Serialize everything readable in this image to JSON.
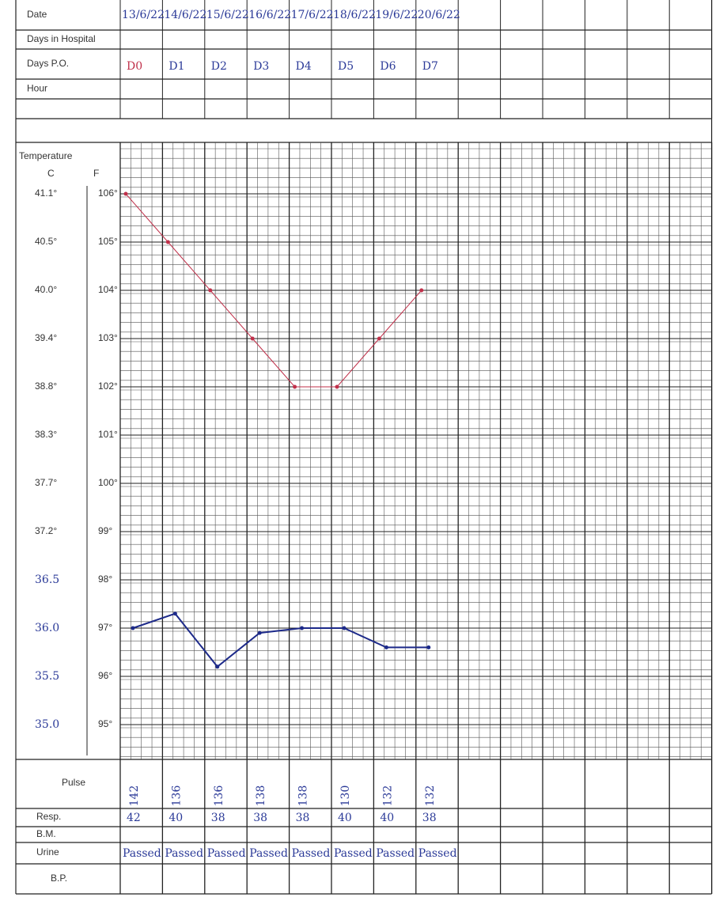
{
  "header_rows": [
    "Date",
    "Days in Hospital",
    "Days P.O.",
    "Hour"
  ],
  "dates": [
    "13/6/22",
    "14/6/22",
    "15/6/22",
    "16/6/22",
    "17/6/22",
    "18/6/22",
    "19/6/22",
    "20/6/22"
  ],
  "days_po": [
    "D0",
    "D1",
    "D2",
    "D3",
    "D4",
    "D5",
    "D6",
    "D7"
  ],
  "temperature": {
    "label": "Temperature",
    "c_label": "C",
    "f_label": "F",
    "c_scale": [
      "41.1°",
      "40.5°",
      "40.0°",
      "39.4°",
      "38.8°",
      "38.3°",
      "37.7°",
      "37.2°",
      "36.5",
      "36.0",
      "35.5",
      "35.0"
    ],
    "f_scale": [
      {
        "value": 106,
        "label": "106°"
      },
      {
        "value": 105,
        "label": "105°"
      },
      {
        "value": 104,
        "label": "104°"
      },
      {
        "value": 103,
        "label": "103°"
      },
      {
        "value": 102,
        "label": "102°"
      },
      {
        "value": 101,
        "label": "101°"
      },
      {
        "value": 100,
        "label": "100°"
      },
      {
        "value": 99,
        "label": "99°"
      },
      {
        "value": 98,
        "label": "98°"
      },
      {
        "value": 97,
        "label": "97°"
      },
      {
        "value": 96,
        "label": "96°"
      },
      {
        "value": 95,
        "label": "95°"
      }
    ],
    "readings_f": [
      106,
      105,
      104,
      103,
      102,
      102,
      103,
      104
    ],
    "pulse_plot": [
      97,
      97.3,
      96.2,
      96.9,
      97,
      97,
      96.6,
      96.6
    ]
  },
  "footer": {
    "pulse_label": "Pulse",
    "resp_label": "Resp.",
    "bm_label": "B.M.",
    "urine_label": "Urine",
    "bp_label": "B.P.",
    "pulse": [
      142,
      136,
      136,
      138,
      138,
      130,
      132,
      132
    ],
    "resp": [
      42,
      40,
      38,
      38,
      38,
      40,
      40,
      38
    ],
    "urine": [
      "Passed",
      "Passed",
      "Passed",
      "Passed",
      "Passed",
      "Passed",
      "Passed",
      "Passed"
    ]
  }
}
